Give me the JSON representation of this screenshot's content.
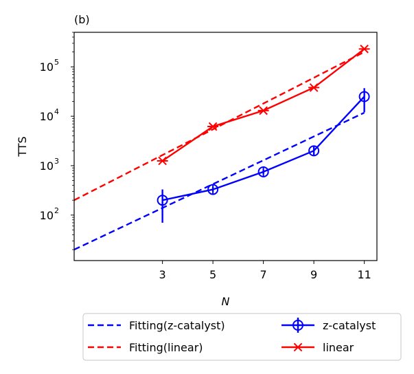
{
  "panel_label": "(b)",
  "chart_data": {
    "type": "line",
    "yscale": "log",
    "xlabel": "N",
    "ylabel": "TTS",
    "xlim": [
      -0.5,
      11.5
    ],
    "ylim": [
      12,
      500000
    ],
    "x_ticks": [
      3,
      5,
      7,
      9,
      11
    ],
    "y_ticks": [
      100,
      1000,
      10000,
      100000
    ],
    "y_tick_labels": [
      {
        "base": "10",
        "exp": "2"
      },
      {
        "base": "10",
        "exp": "3"
      },
      {
        "base": "10",
        "exp": "4"
      },
      {
        "base": "10",
        "exp": "5"
      }
    ],
    "series": [
      {
        "name": "z-catalyst",
        "color": "#0000ff",
        "style": "solid",
        "marker": "circle-errorbar",
        "x": [
          3,
          5,
          7,
          9,
          11
        ],
        "values": [
          200,
          330,
          750,
          2000,
          25000
        ],
        "err_low": [
          70,
          300,
          680,
          1600,
          12000
        ],
        "err_high": [
          330,
          370,
          830,
          2500,
          37000
        ]
      },
      {
        "name": "linear",
        "color": "#ff0000",
        "style": "solid",
        "marker": "asterisk",
        "x": [
          3,
          5,
          7,
          9,
          11
        ],
        "values": [
          1250,
          6200,
          13000,
          38000,
          230000
        ]
      },
      {
        "name": "Fitting(z-catalyst)",
        "color": "#0000ff",
        "style": "dashed",
        "x": [
          -0.5,
          11
        ],
        "values": [
          20,
          11800
        ]
      },
      {
        "name": "Fitting(linear)",
        "color": "#ff0000",
        "style": "dashed",
        "x": [
          -0.5,
          11
        ],
        "values": [
          200,
          200000
        ]
      }
    ],
    "legend": {
      "placement": "below",
      "columns": [
        [
          "Fitting(z-catalyst)",
          "Fitting(linear)"
        ],
        [
          "z-catalyst",
          "linear"
        ]
      ]
    }
  }
}
